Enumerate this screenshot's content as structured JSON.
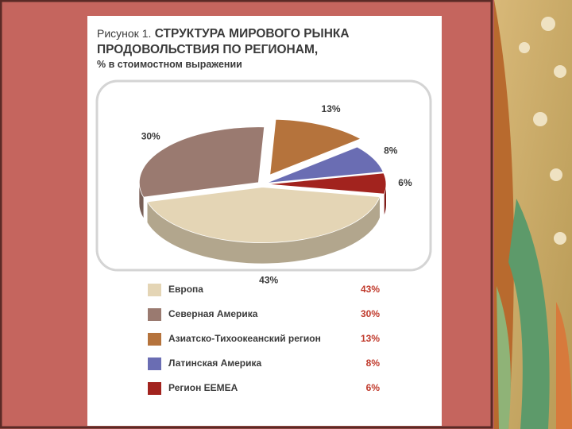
{
  "chart_data": {
    "type": "pie",
    "figure_label": "Рисунок 1.",
    "title": "СТРУКТУРА МИРОВОГО РЫНКА ПРОДОВОЛЬСТВИЯ ПО РЕГИОНАМ,",
    "subtitle": "% в стоимостном выражении",
    "categories": [
      "Европа",
      "Северная Америка",
      "Азиатско-Тихоокеанский регион",
      "Латинская Америка",
      "Регион EEMEA"
    ],
    "values": [
      43,
      30,
      13,
      8,
      6
    ],
    "value_labels": [
      "43%",
      "30%",
      "13%",
      "8%",
      "6%"
    ],
    "colors": [
      "#e4d5b5",
      "#9a7a70",
      "#b5733c",
      "#6a6db3",
      "#a2231e"
    ]
  }
}
